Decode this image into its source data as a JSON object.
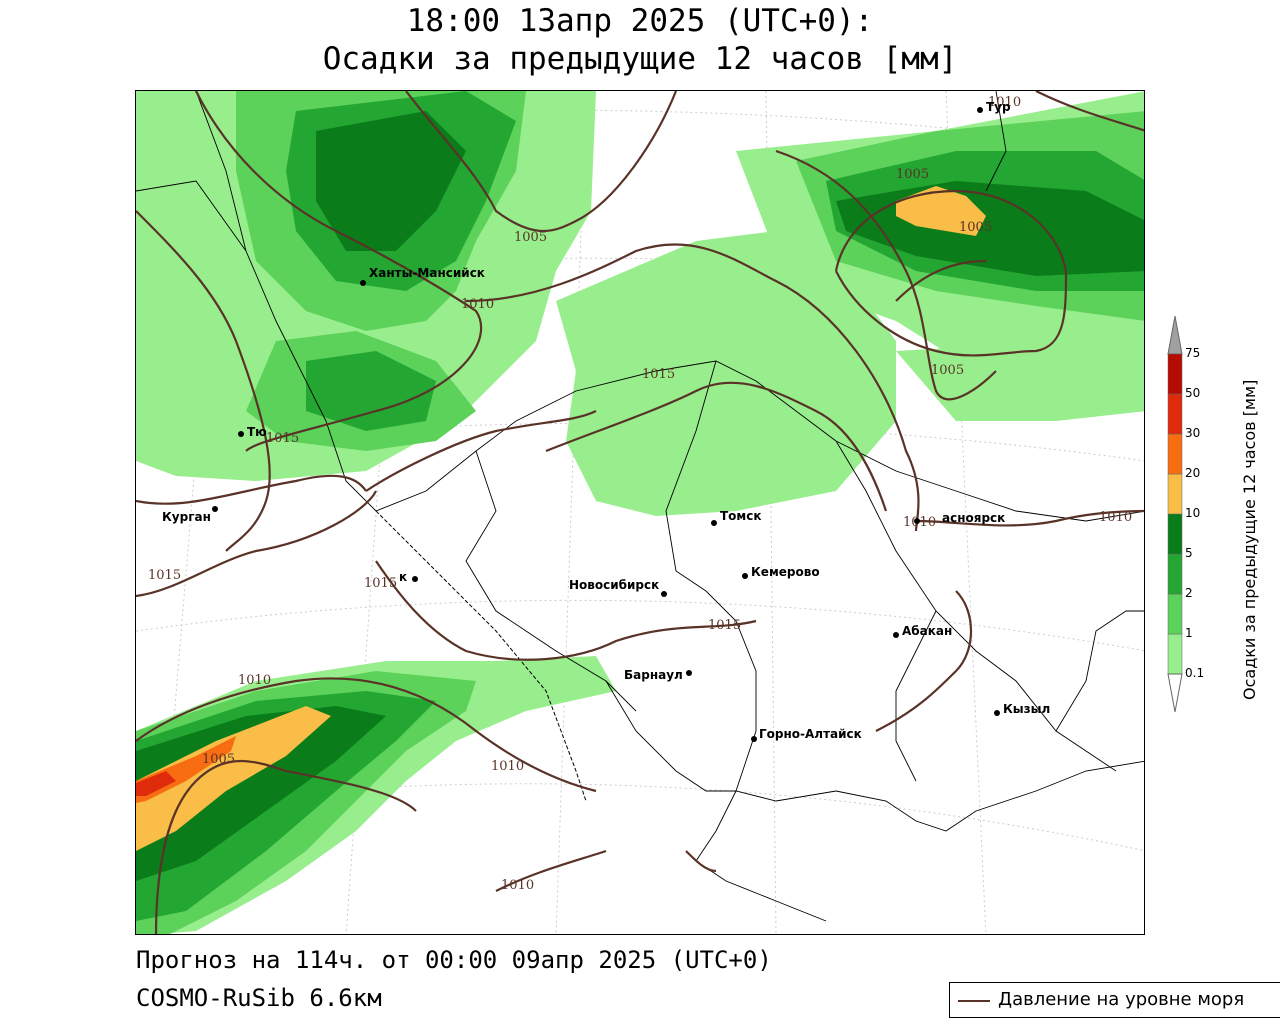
{
  "header": {
    "title_line1": "18:00 13апр 2025 (UTC+0):",
    "title_line2": "Осадки за предыдущие 12 часов [мм]"
  },
  "footer": {
    "forecast": "Прогноз на 114ч. от 00:00 09апр 2025 (UTC+0)",
    "model": "COSMO-RuSib 6.6км"
  },
  "legend": {
    "isobar_label": "Давление на уровне моря",
    "isobar_color": "#5a3328"
  },
  "colorbar": {
    "title": "Осадки за предыдущие 12 часов [мм]",
    "levels": [
      "0.1",
      "1",
      "2",
      "5",
      "10",
      "20",
      "30",
      "50",
      "75"
    ],
    "colors": [
      "#98ee8c",
      "#5cd25a",
      "#23a632",
      "#0a7d1a",
      "#f9bd48",
      "#f86d12",
      "#e02a0c",
      "#b40c00",
      "#a0a0a0"
    ]
  },
  "cities": [
    {
      "name": "Ханты-Мансийск"
    },
    {
      "name": "Тюмень",
      "label": "Тю"
    },
    {
      "name": "Курган",
      "label": "Курган"
    },
    {
      "name": "Омск",
      "label": "к"
    },
    {
      "name": "Новосибирск",
      "label": "Новосибирск"
    },
    {
      "name": "Томск",
      "label": "Томск"
    },
    {
      "name": "Кемерово",
      "label": "Кемерово"
    },
    {
      "name": "Барнаул",
      "label": "Барнаул"
    },
    {
      "name": "Горно-Алтайск",
      "label": "Горно-Алтайск"
    },
    {
      "name": "Абакан",
      "label": "Абакан"
    },
    {
      "name": "Кызыл",
      "label": "Кызыл"
    },
    {
      "name": "Красноярск",
      "label": "асноярск"
    },
    {
      "name": "Тура",
      "label": "Тур"
    }
  ],
  "isobar_values": [
    "1005",
    "1010",
    "1015"
  ]
}
